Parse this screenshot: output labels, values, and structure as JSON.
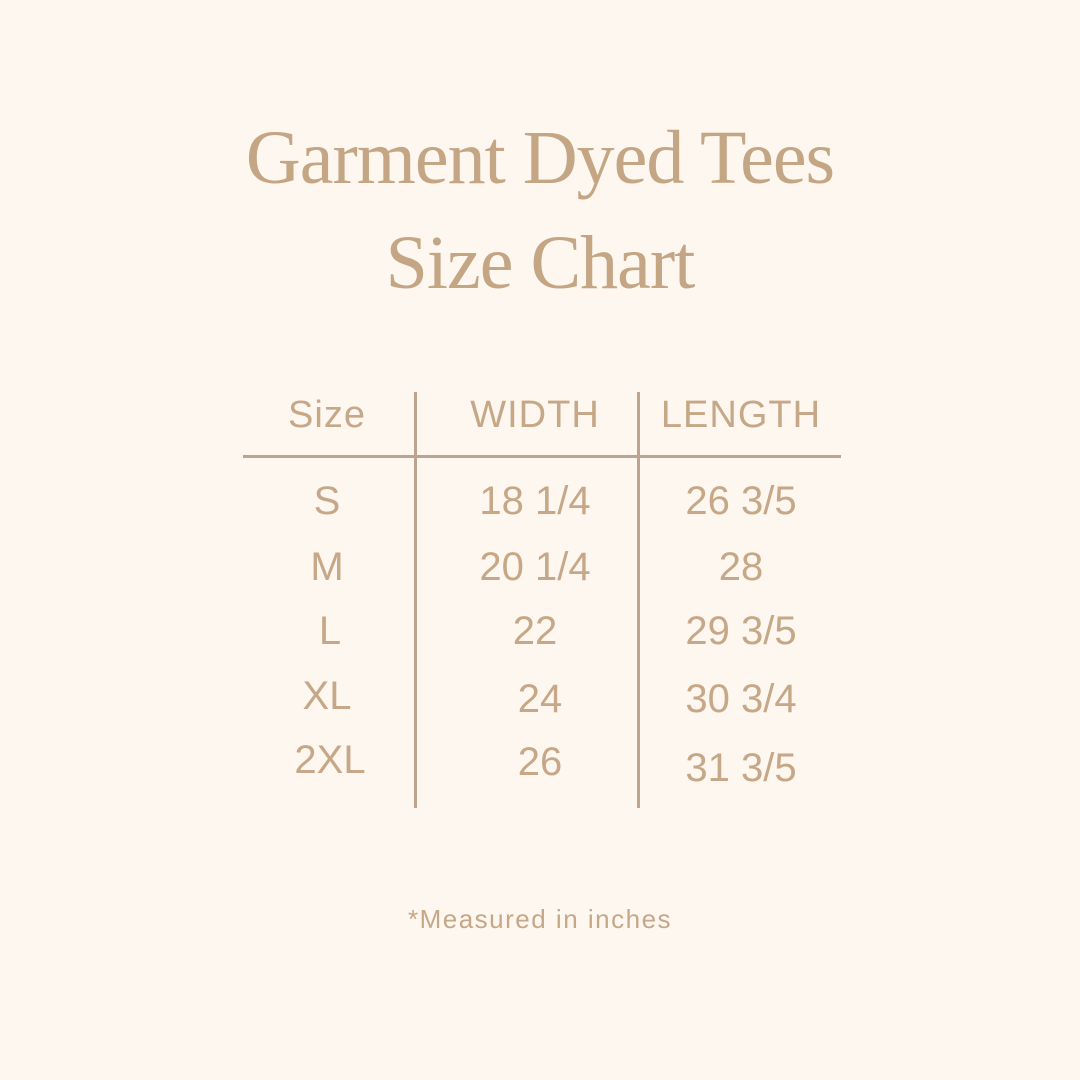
{
  "title": {
    "line1": "Garment Dyed Tees",
    "line2": "Size Chart"
  },
  "table": {
    "headers": [
      "Size",
      "WIDTH",
      "LENGTH"
    ],
    "rows": [
      [
        "S",
        "18 1/4",
        "26 3/5"
      ],
      [
        "M",
        "20 1/4",
        "28"
      ],
      [
        "L",
        "22",
        "29 3/5"
      ],
      [
        "XL",
        "24",
        "30 3/4"
      ],
      [
        "2XL",
        "26",
        "31 3/5"
      ]
    ]
  },
  "footnote": "*Measured in inches",
  "colors": {
    "background": "#fdf7ef",
    "text": "#c6a787",
    "lines": "#bca491"
  }
}
